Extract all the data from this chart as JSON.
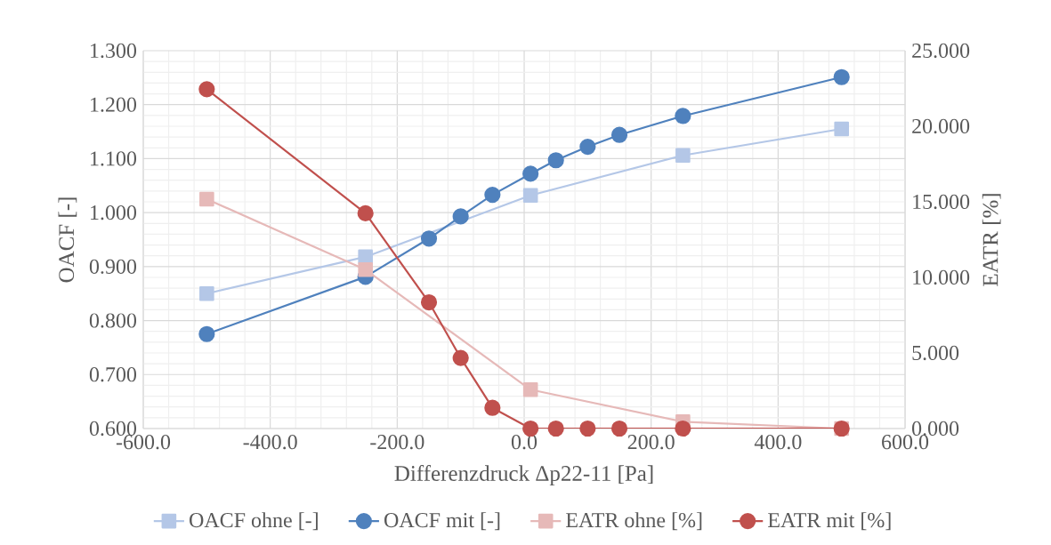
{
  "chart_data": {
    "type": "line",
    "xlabel": "Differenzdruck Δp22-11 [Pa]",
    "ylabel": "OACF [-]",
    "y2label": "EATR [%]",
    "xlim": [
      -600,
      600
    ],
    "xticks": [
      {
        "value": -600,
        "label": "-600.0"
      },
      {
        "value": -400,
        "label": "-400.0"
      },
      {
        "value": -200,
        "label": "-200.0"
      },
      {
        "value": 0,
        "label": "0.0"
      },
      {
        "value": 200,
        "label": "200.0"
      },
      {
        "value": 400,
        "label": "400.0"
      },
      {
        "value": 600,
        "label": "600.0"
      }
    ],
    "ylim": [
      0.6,
      1.3
    ],
    "yticks": [
      {
        "value": 0.6,
        "label": "0.600"
      },
      {
        "value": 0.7,
        "label": "0.700"
      },
      {
        "value": 0.8,
        "label": "0.800"
      },
      {
        "value": 0.9,
        "label": "0.900"
      },
      {
        "value": 1.0,
        "label": "1.000"
      },
      {
        "value": 1.1,
        "label": "1.100"
      },
      {
        "value": 1.2,
        "label": "1.200"
      },
      {
        "value": 1.3,
        "label": "1.300"
      }
    ],
    "y2lim": [
      0,
      25
    ],
    "y2ticks": [
      {
        "value": 0,
        "label": "0.000"
      },
      {
        "value": 5,
        "label": "5.000"
      },
      {
        "value": 10,
        "label": "10.000"
      },
      {
        "value": 15,
        "label": "15.000"
      },
      {
        "value": 20,
        "label": "20.000"
      },
      {
        "value": 25,
        "label": "25.000"
      }
    ],
    "grid": true,
    "legend": "bottom",
    "series": [
      {
        "name": "OACF ohne [-]",
        "color": "#b4c7e7",
        "marker": "square",
        "x": [
          -500,
          -250,
          10,
          250,
          500
        ],
        "values": [
          0.85,
          0.918,
          1.032,
          1.106,
          1.155
        ]
      },
      {
        "name": "OACF mit [-]",
        "color": "#4f81bd",
        "marker": "circle",
        "x": [
          -500,
          -250,
          -150,
          -100,
          -50,
          10,
          50,
          100,
          150,
          250,
          500
        ],
        "values": [
          0.775,
          0.881,
          0.952,
          0.993,
          1.033,
          1.072,
          1.097,
          1.122,
          1.144,
          1.179,
          1.251
        ]
      },
      {
        "name": "EATR ohne [%]",
        "color": "#e6b9b8",
        "marker": "square",
        "axis": "y2",
        "x": [
          -500,
          -250,
          10,
          250,
          500
        ],
        "values": [
          15.18,
          10.51,
          2.57,
          0.45,
          0
        ]
      },
      {
        "name": "EATR mit [%]",
        "color": "#c0504d",
        "marker": "circle",
        "axis": "y2",
        "x": [
          -500,
          -250,
          -150,
          -100,
          -50,
          10,
          50,
          100,
          150,
          250,
          500
        ],
        "values": [
          22.45,
          14.24,
          8.35,
          4.67,
          1.37,
          0,
          0,
          0,
          0,
          0,
          0
        ]
      }
    ]
  }
}
